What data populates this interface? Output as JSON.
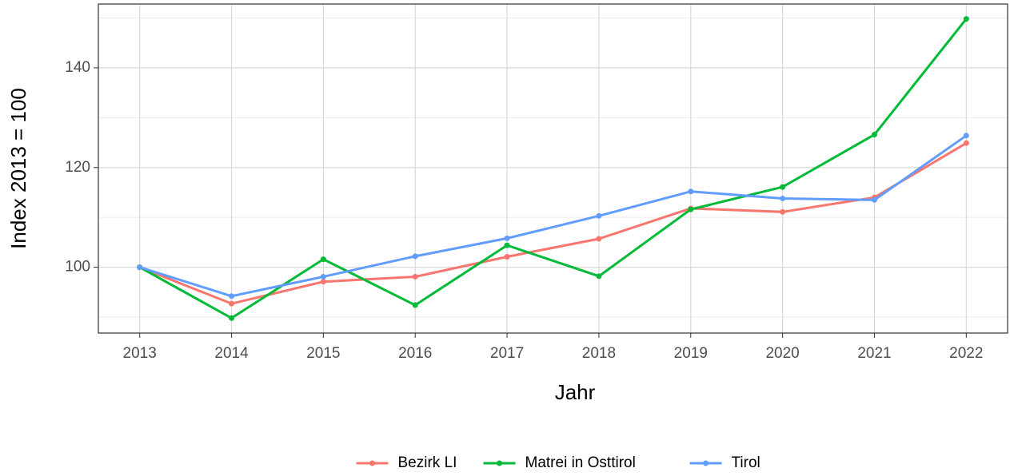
{
  "chart_data": {
    "type": "line",
    "x_label": "Jahr",
    "y_label": "Index  2013  = 100",
    "x": [
      2013,
      2014,
      2015,
      2016,
      2017,
      2018,
      2019,
      2020,
      2021,
      2022
    ],
    "series": [
      {
        "name": "Bezirk LI",
        "color": "#F8766D",
        "values": [
          100,
          92.7,
          97.1,
          98.1,
          102.1,
          105.7,
          111.8,
          111.1,
          114.0,
          124.9
        ]
      },
      {
        "name": "Matrei in Osttirol",
        "color": "#00BA38",
        "values": [
          100,
          89.8,
          101.6,
          92.4,
          104.4,
          98.2,
          111.6,
          116.1,
          126.6,
          149.8
        ]
      },
      {
        "name": "Tirol",
        "color": "#619CFF",
        "values": [
          100,
          94.2,
          98.1,
          102.2,
          105.8,
          110.3,
          115.2,
          113.8,
          113.5,
          126.4
        ]
      }
    ],
    "xlim": [
      2012.55,
      2022.45
    ],
    "xticks": [
      2013,
      2014,
      2015,
      2016,
      2017,
      2018,
      2019,
      2020,
      2021,
      2022
    ],
    "ylim": [
      86.8,
      152.8
    ],
    "yticks": [
      100,
      120,
      140
    ],
    "y_minor_ticks": [
      90,
      110,
      130,
      150
    ],
    "grid": true,
    "legend": "bottom"
  }
}
